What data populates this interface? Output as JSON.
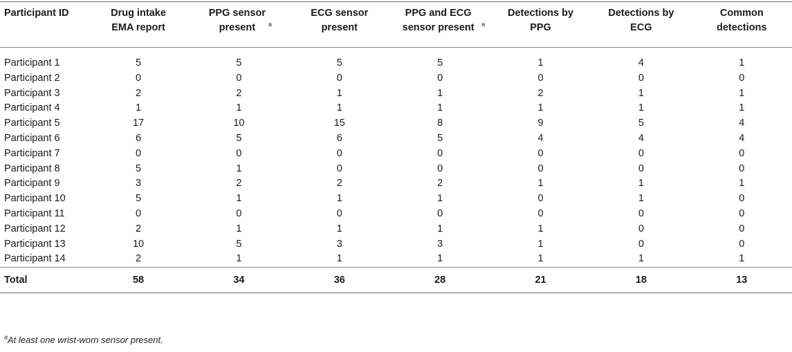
{
  "table": {
    "headers": [
      {
        "text": "Participant ID",
        "sup": ""
      },
      {
        "text": "Drug intake EMA report",
        "sup": ""
      },
      {
        "text": "PPG sensor present",
        "sup": "a"
      },
      {
        "text": "ECG sensor present",
        "sup": ""
      },
      {
        "text": "PPG and ECG sensor present",
        "sup": "a"
      },
      {
        "text": "Detections by PPG",
        "sup": ""
      },
      {
        "text": "Detections by ECG",
        "sup": ""
      },
      {
        "text": "Common detections",
        "sup": ""
      }
    ],
    "rows": [
      [
        "Participant 1",
        "5",
        "5",
        "5",
        "5",
        "1",
        "4",
        "1"
      ],
      [
        "Participant 2",
        "0",
        "0",
        "0",
        "0",
        "0",
        "0",
        "0"
      ],
      [
        "Participant 3",
        "2",
        "2",
        "1",
        "1",
        "2",
        "1",
        "1"
      ],
      [
        "Participant 4",
        "1",
        "1",
        "1",
        "1",
        "1",
        "1",
        "1"
      ],
      [
        "Participant 5",
        "17",
        "10",
        "15",
        "8",
        "9",
        "5",
        "4"
      ],
      [
        "Participant 6",
        "6",
        "5",
        "6",
        "5",
        "4",
        "4",
        "4"
      ],
      [
        "Participant 7",
        "0",
        "0",
        "0",
        "0",
        "0",
        "0",
        "0"
      ],
      [
        "Participant 8",
        "5",
        "1",
        "0",
        "0",
        "0",
        "0",
        "0"
      ],
      [
        "Participant 9",
        "3",
        "2",
        "2",
        "2",
        "1",
        "1",
        "1"
      ],
      [
        "Participant 10",
        "5",
        "1",
        "1",
        "1",
        "0",
        "1",
        "0"
      ],
      [
        "Participant 11",
        "0",
        "0",
        "0",
        "0",
        "0",
        "0",
        "0"
      ],
      [
        "Participant 12",
        "2",
        "1",
        "1",
        "1",
        "1",
        "0",
        "0"
      ],
      [
        "Participant 13",
        "10",
        "5",
        "3",
        "3",
        "1",
        "0",
        "0"
      ],
      [
        "Participant 14",
        "2",
        "1",
        "1",
        "1",
        "1",
        "1",
        "1"
      ]
    ],
    "total": [
      "Total",
      "58",
      "34",
      "36",
      "28",
      "21",
      "18",
      "13"
    ]
  },
  "footnote": {
    "mark": "a",
    "text": "At least one wrist-worn sensor present."
  }
}
